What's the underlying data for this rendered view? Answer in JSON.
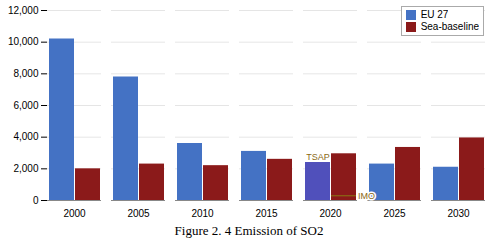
{
  "chart_data": {
    "type": "bar",
    "title": "Figure 2. 4 Emission of SO2",
    "categories": [
      "2000",
      "2005",
      "2010",
      "2015",
      "2020",
      "2025",
      "2030"
    ],
    "series": [
      {
        "name": "EU 27",
        "color": "#4472C4",
        "colors": [
          "#4472C4",
          "#4472C4",
          "#4472C4",
          "#4472C4",
          "#5050BB",
          "#4472C4",
          "#4472C4"
        ],
        "values": [
          10200,
          7800,
          3600,
          3100,
          2400,
          2300,
          2100
        ]
      },
      {
        "name": "Sea-baseline",
        "color": "#8B1A1A",
        "values": [
          2000,
          2300,
          2200,
          2600,
          2950,
          3350,
          3950
        ]
      }
    ],
    "ylim": [
      0,
      12000
    ],
    "yticks": [
      0,
      {
        "value": 2000,
        "label": "2,000"
      },
      {
        "value": 4000,
        "label": "4,000"
      },
      {
        "value": 6000,
        "label": "6,000"
      },
      {
        "value": 8000,
        "label": "8,000"
      },
      {
        "value": 10000,
        "label": "10,000"
      },
      {
        "value": 12000,
        "label": "12,000"
      }
    ],
    "grid": true,
    "legend": "upper right",
    "annotations": [
      {
        "text": "TSAP",
        "category": "2020",
        "series": "EU 27",
        "color": "#8B6914"
      },
      {
        "text": "IMO",
        "category": "2020",
        "series": "Sea-baseline",
        "y": 300,
        "color": "#8B6914"
      }
    ]
  }
}
